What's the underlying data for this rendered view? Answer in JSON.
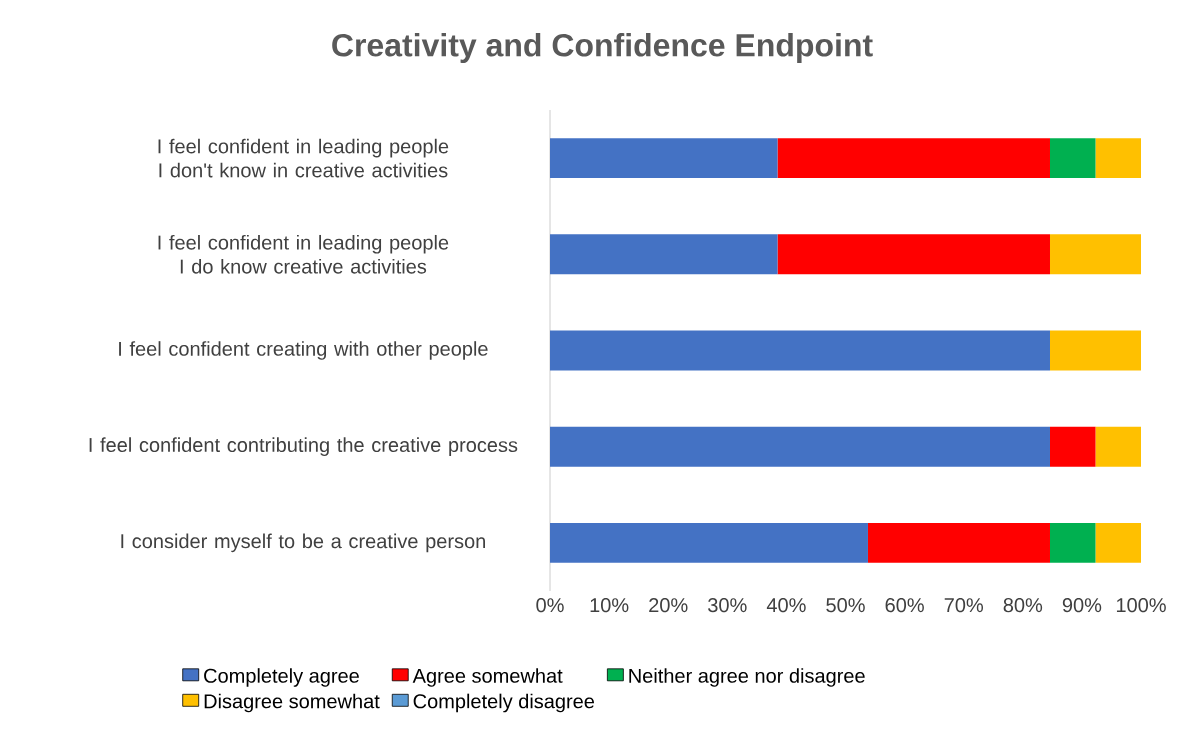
{
  "chart_data": {
    "type": "bar",
    "orientation": "horizontal",
    "stacked": true,
    "title": "Creativity and Confidence Endpoint",
    "categories": [
      "I feel confident in leading people I don't know in creative activities",
      "I feel confident in leading people I do know creative activities",
      "I feel confident creating with other people",
      "I feel confident contributing the creative process",
      "I consider myself to be a creative person"
    ],
    "series": [
      {
        "name": "Completely agree",
        "color": "#4472c4",
        "values": [
          38.5,
          38.5,
          84.6,
          84.6,
          53.8
        ]
      },
      {
        "name": "Agree somewhat",
        "color": "#ff0000",
        "values": [
          46.1,
          46.1,
          0,
          7.7,
          30.8
        ]
      },
      {
        "name": "Neither agree nor disagree",
        "color": "#00b050",
        "values": [
          7.7,
          0,
          0,
          0,
          7.7
        ]
      },
      {
        "name": "Disagree somewhat",
        "color": "#ffc000",
        "values": [
          7.7,
          15.4,
          15.4,
          7.7,
          7.7
        ]
      },
      {
        "name": "Completely disagree",
        "color": "#5b9bd5",
        "values": [
          0,
          0,
          0,
          0,
          0
        ]
      }
    ],
    "xlim": [
      0,
      100
    ],
    "xticks": [
      {
        "value": 0,
        "label": "0%"
      },
      {
        "value": 10,
        "label": "10%"
      },
      {
        "value": 20,
        "label": "20%"
      },
      {
        "value": 30,
        "label": "30%"
      },
      {
        "value": 40,
        "label": "40%"
      },
      {
        "value": 50,
        "label": "50%"
      },
      {
        "value": 60,
        "label": "60%"
      },
      {
        "value": 70,
        "label": "70%"
      },
      {
        "value": 80,
        "label": "80%"
      },
      {
        "value": 90,
        "label": "90%"
      },
      {
        "value": 100,
        "label": "100%"
      }
    ],
    "grid": false,
    "legend": "bottom"
  }
}
